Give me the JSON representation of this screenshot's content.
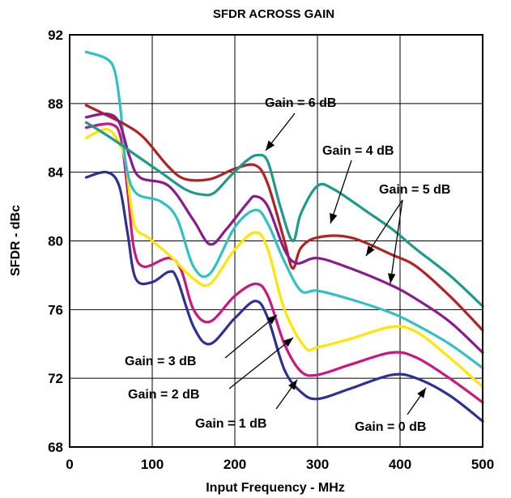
{
  "chart_data": {
    "type": "line",
    "title": "SFDR ACROSS GAIN",
    "xlabel": "Input Frequency - MHz",
    "ylabel": "SFDR - dBc",
    "xlim": [
      0,
      500
    ],
    "ylim": [
      68,
      92
    ],
    "xticks": [
      0,
      100,
      200,
      300,
      400,
      500
    ],
    "yticks": [
      68,
      72,
      76,
      80,
      84,
      88,
      92
    ],
    "grid": true,
    "series": [
      {
        "name": "Gain = 0 dB",
        "color": "#2e3192",
        "points": [
          [
            20,
            83.7
          ],
          [
            45,
            84.0
          ],
          [
            60,
            83.2
          ],
          [
            70,
            80.5
          ],
          [
            80,
            77.8
          ],
          [
            100,
            77.6
          ],
          [
            120,
            78.2
          ],
          [
            130,
            77.8
          ],
          [
            150,
            75.0
          ],
          [
            170,
            74.0
          ],
          [
            200,
            75.5
          ],
          [
            225,
            76.5
          ],
          [
            240,
            75.5
          ],
          [
            260,
            72.5
          ],
          [
            280,
            71.2
          ],
          [
            300,
            70.8
          ],
          [
            340,
            71.4
          ],
          [
            390,
            72.2
          ],
          [
            420,
            72.0
          ],
          [
            460,
            71.0
          ],
          [
            500,
            69.5
          ]
        ]
      },
      {
        "name": "Gain = 1 dB",
        "color": "#c8177d",
        "points": [
          [
            20,
            86.6
          ],
          [
            50,
            86.8
          ],
          [
            62,
            86.0
          ],
          [
            70,
            83.0
          ],
          [
            78,
            79.5
          ],
          [
            90,
            78.5
          ],
          [
            120,
            79.0
          ],
          [
            135,
            78.3
          ],
          [
            150,
            76.0
          ],
          [
            170,
            75.3
          ],
          [
            200,
            76.8
          ],
          [
            225,
            77.5
          ],
          [
            240,
            76.8
          ],
          [
            260,
            74.0
          ],
          [
            280,
            72.4
          ],
          [
            300,
            72.2
          ],
          [
            340,
            72.8
          ],
          [
            390,
            73.5
          ],
          [
            420,
            73.2
          ],
          [
            460,
            72.0
          ],
          [
            500,
            70.6
          ]
        ]
      },
      {
        "name": "Gain = 2 dB",
        "color": "#ffe600",
        "points": [
          [
            20,
            86.0
          ],
          [
            45,
            86.5
          ],
          [
            60,
            85.7
          ],
          [
            68,
            84.5
          ],
          [
            78,
            81.0
          ],
          [
            95,
            80.2
          ],
          [
            120,
            79.2
          ],
          [
            150,
            77.8
          ],
          [
            170,
            77.5
          ],
          [
            200,
            79.5
          ],
          [
            225,
            80.5
          ],
          [
            240,
            79.5
          ],
          [
            260,
            76.0
          ],
          [
            285,
            73.8
          ],
          [
            300,
            73.8
          ],
          [
            340,
            74.3
          ],
          [
            390,
            75.0
          ],
          [
            420,
            74.7
          ],
          [
            460,
            73.2
          ],
          [
            500,
            71.5
          ]
        ]
      },
      {
        "name": "Gain = 3 dB",
        "color": "#33c0c0",
        "points": [
          [
            20,
            91.0
          ],
          [
            45,
            90.6
          ],
          [
            55,
            89.8
          ],
          [
            62,
            87.5
          ],
          [
            68,
            84.5
          ],
          [
            80,
            82.8
          ],
          [
            110,
            82.3
          ],
          [
            130,
            81.3
          ],
          [
            150,
            78.5
          ],
          [
            170,
            78.1
          ],
          [
            200,
            80.8
          ],
          [
            225,
            81.8
          ],
          [
            240,
            81.0
          ],
          [
            260,
            78.8
          ],
          [
            280,
            77.1
          ],
          [
            300,
            77.1
          ],
          [
            340,
            76.6
          ],
          [
            390,
            75.8
          ],
          [
            420,
            75.1
          ],
          [
            460,
            74.0
          ],
          [
            500,
            72.6
          ]
        ]
      },
      {
        "name": "Gain = 4 dB",
        "color": "#b22222",
        "points": [
          [
            20,
            87.9
          ],
          [
            50,
            87.2
          ],
          [
            70,
            86.7
          ],
          [
            90,
            86.0
          ],
          [
            120,
            84.3
          ],
          [
            140,
            83.6
          ],
          [
            170,
            83.6
          ],
          [
            200,
            84.2
          ],
          [
            225,
            84.4
          ],
          [
            240,
            83.3
          ],
          [
            260,
            80.0
          ],
          [
            270,
            78.4
          ],
          [
            280,
            79.6
          ],
          [
            300,
            80.2
          ],
          [
            340,
            80.2
          ],
          [
            390,
            79.2
          ],
          [
            420,
            78.5
          ],
          [
            460,
            76.8
          ],
          [
            500,
            74.8
          ]
        ]
      },
      {
        "name": "Gain = 5 dB",
        "color": "#8b1a8b",
        "points": [
          [
            20,
            87.2
          ],
          [
            45,
            87.4
          ],
          [
            60,
            86.9
          ],
          [
            72,
            85.0
          ],
          [
            85,
            83.7
          ],
          [
            120,
            83.2
          ],
          [
            150,
            81.2
          ],
          [
            170,
            79.8
          ],
          [
            190,
            80.7
          ],
          [
            215,
            82.2
          ],
          [
            225,
            82.6
          ],
          [
            240,
            82.0
          ],
          [
            260,
            79.5
          ],
          [
            275,
            78.7
          ],
          [
            300,
            79.0
          ],
          [
            340,
            78.4
          ],
          [
            390,
            77.4
          ],
          [
            420,
            76.6
          ],
          [
            460,
            75.3
          ],
          [
            500,
            73.5
          ]
        ]
      },
      {
        "name": "Gain = 6 dB",
        "color": "#1f9a8a",
        "points": [
          [
            20,
            86.9
          ],
          [
            50,
            86.0
          ],
          [
            80,
            85.0
          ],
          [
            110,
            84.0
          ],
          [
            140,
            83.0
          ],
          [
            160,
            82.7
          ],
          [
            175,
            82.8
          ],
          [
            195,
            83.8
          ],
          [
            215,
            84.7
          ],
          [
            228,
            85.0
          ],
          [
            240,
            84.6
          ],
          [
            255,
            82.0
          ],
          [
            270,
            80.0
          ],
          [
            280,
            81.6
          ],
          [
            300,
            83.2
          ],
          [
            320,
            83.0
          ],
          [
            360,
            81.7
          ],
          [
            390,
            80.7
          ],
          [
            420,
            79.5
          ],
          [
            460,
            78.0
          ],
          [
            500,
            76.2
          ]
        ]
      }
    ],
    "annotations": [
      {
        "text": "Gain = 6 dB"
      },
      {
        "text": "Gain = 4 dB"
      },
      {
        "text": "Gain = 5 dB"
      },
      {
        "text": "Gain = 3 dB"
      },
      {
        "text": "Gain = 2 dB"
      },
      {
        "text": "Gain = 1 dB"
      },
      {
        "text": "Gain = 0 dB"
      }
    ]
  }
}
